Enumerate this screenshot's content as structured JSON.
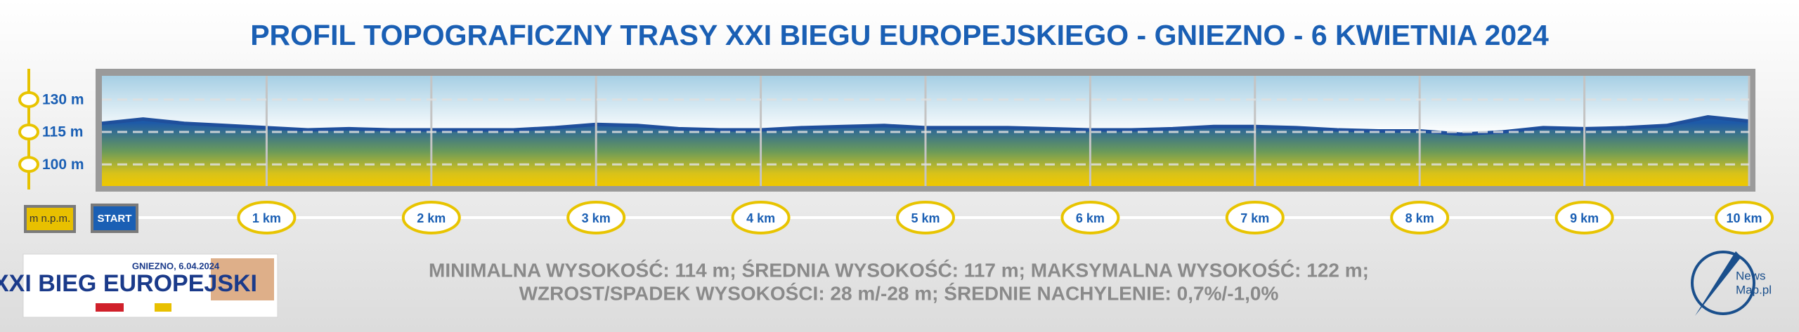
{
  "chart_data": {
    "type": "area",
    "title": "PROFIL TOPOGRAFICZNY TRASY XXI BIEGU EUROPEJSKIEGO - GNIEZNO - 6 KWIETNIA 2024",
    "x": [
      0,
      0.25,
      0.5,
      0.75,
      1,
      1.25,
      1.5,
      1.75,
      2,
      2.25,
      2.5,
      2.75,
      3,
      3.25,
      3.5,
      3.75,
      4,
      4.25,
      4.5,
      4.75,
      5,
      5.25,
      5.5,
      5.75,
      6,
      6.25,
      6.5,
      6.75,
      7,
      7.25,
      7.5,
      7.75,
      8,
      8.25,
      8.5,
      8.75,
      9,
      9.25,
      9.5,
      9.75,
      10
    ],
    "values": [
      119,
      121,
      119,
      118,
      117,
      116,
      116.5,
      116,
      116,
      116,
      116,
      117,
      118.5,
      118,
      116.5,
      116,
      116,
      117,
      117.5,
      118,
      117,
      117,
      117,
      116.5,
      116,
      116,
      116.5,
      117.5,
      117.5,
      117,
      116,
      115.5,
      115.5,
      114,
      115,
      117,
      116.5,
      117,
      118,
      122,
      120
    ],
    "xlim": [
      0,
      10
    ],
    "xticks": [
      {
        "value": 0,
        "label": "START"
      },
      {
        "value": 1,
        "label": "1 km"
      },
      {
        "value": 2,
        "label": "2 km"
      },
      {
        "value": 3,
        "label": "3 km"
      },
      {
        "value": 4,
        "label": "4 km"
      },
      {
        "value": 5,
        "label": "5 km"
      },
      {
        "value": 6,
        "label": "6 km"
      },
      {
        "value": 7,
        "label": "7 km"
      },
      {
        "value": 8,
        "label": "8 km"
      },
      {
        "value": 9,
        "label": "9 km"
      },
      {
        "value": 10,
        "label": "10 km"
      }
    ],
    "ylim": [
      90,
      141
    ],
    "yticks": [
      {
        "value": 100,
        "label": "100 m"
      },
      {
        "value": 115,
        "label": "115 m"
      },
      {
        "value": 130,
        "label": "130 m"
      }
    ],
    "y_unit_label": "m n.p.m.",
    "color": "#1f4f9c",
    "grid": true,
    "stats": [
      "MINIMALNA WYSOKOŚĆ: 114 m; ŚREDNIA WYSOKOŚĆ: 117 m; MAKSYMALNA WYSOKOŚĆ: 122 m;",
      "WZROST/SPADEK WYSOKOŚCI: 28 m/-28 m; ŚREDNIE NACHYLENIE: 0,7%/-1,0%"
    ],
    "event_logo": {
      "date": "GNIEZNO, 6.04.2024",
      "name": "XXI BIEG EUROPEJSKI"
    },
    "brand_logo": [
      "News",
      "Map.pl"
    ]
  }
}
